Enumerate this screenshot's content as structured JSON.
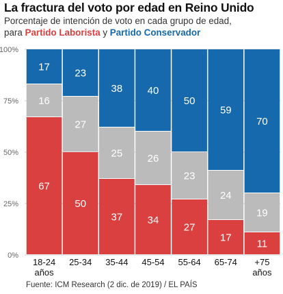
{
  "title": "La fractura del voto por edad en Reino Unido",
  "subtitle": {
    "line1": "Porcentaje de intención de voto en cada grupo de edad,",
    "prefix": "para ",
    "labour": "Partido Laborista",
    "connector": " y ",
    "conservative": "Partido Conservador"
  },
  "source": "Fuente: ICM Research (2 dic. de 2019) / EL PAÍS",
  "colors": {
    "labour": "#d9403f",
    "other": "#bbbbbb",
    "conservative": "#1769ae",
    "grid": "#cccccc"
  },
  "chart_data": {
    "type": "bar",
    "stacked": true,
    "title": "La fractura del voto por edad en Reino Unido",
    "ylim": [
      0,
      100
    ],
    "yticks": [
      "0%",
      "25%",
      "50%",
      "75%",
      "100%"
    ],
    "ytick_values": [
      0,
      25,
      50,
      75,
      100
    ],
    "grid": true,
    "categories": [
      [
        "18-24",
        "años"
      ],
      [
        "25-34"
      ],
      [
        "35-44"
      ],
      [
        "45-54"
      ],
      [
        "55-64"
      ],
      [
        "65-74"
      ],
      [
        "+75",
        "años"
      ]
    ],
    "series": [
      {
        "name": "Partido Laborista",
        "color_key": "labour",
        "values": [
          67,
          50,
          37,
          34,
          27,
          17,
          11
        ]
      },
      {
        "color_key": "other",
        "values": [
          16,
          27,
          25,
          26,
          23,
          24,
          19
        ]
      },
      {
        "name": "Partido Conservador",
        "color_key": "conservative",
        "values": [
          17,
          23,
          38,
          40,
          50,
          59,
          70
        ]
      }
    ]
  }
}
